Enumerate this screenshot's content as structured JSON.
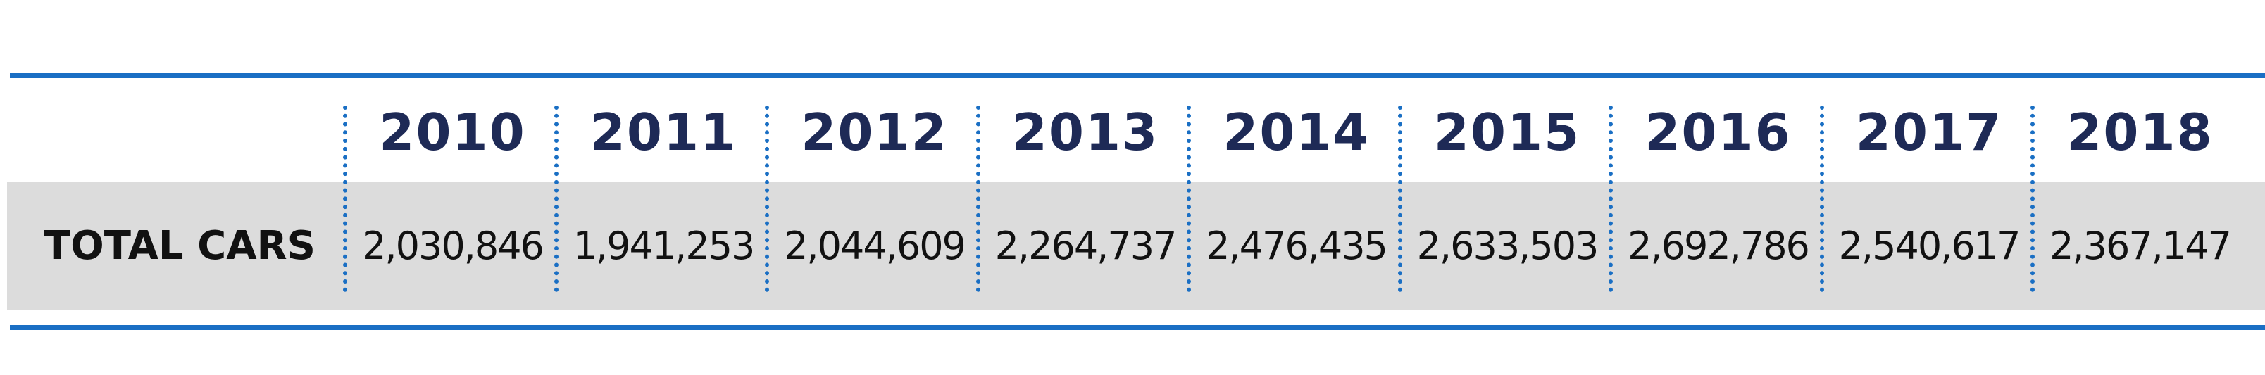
{
  "table": {
    "header": [
      "2010",
      "2011",
      "2012",
      "2013",
      "2014",
      "2015",
      "2016",
      "2017",
      "2018"
    ],
    "rows": [
      {
        "label": "TOTAL CARS",
        "values": [
          "2,030,846",
          "1,941,253",
          "2,044,609",
          "2,264,737",
          "2,476,435",
          "2,633,503",
          "2,692,786",
          "2,540,617",
          "2,367,147"
        ]
      }
    ]
  }
}
